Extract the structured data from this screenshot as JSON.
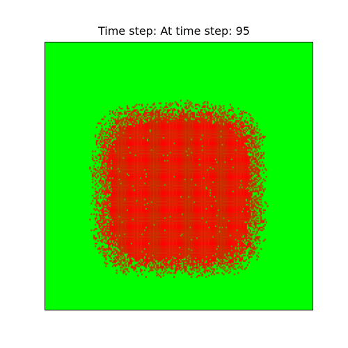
{
  "chart_data": {
    "type": "heatmap",
    "title": "Time step: At time step: 95",
    "xlabel": "",
    "ylabel": "",
    "grid": false,
    "axes_ticks": false,
    "grid_size": [
      200,
      200
    ],
    "colors": {
      "background_state": "#00ff00",
      "infected_state": "#ff0000"
    },
    "states": [
      "green",
      "red"
    ],
    "dominant_region": {
      "state": "red",
      "shape": "rounded-square blob, centered",
      "center": [
        0.5,
        0.55
      ],
      "half_width": 0.3,
      "half_height": 0.3
    }
  }
}
